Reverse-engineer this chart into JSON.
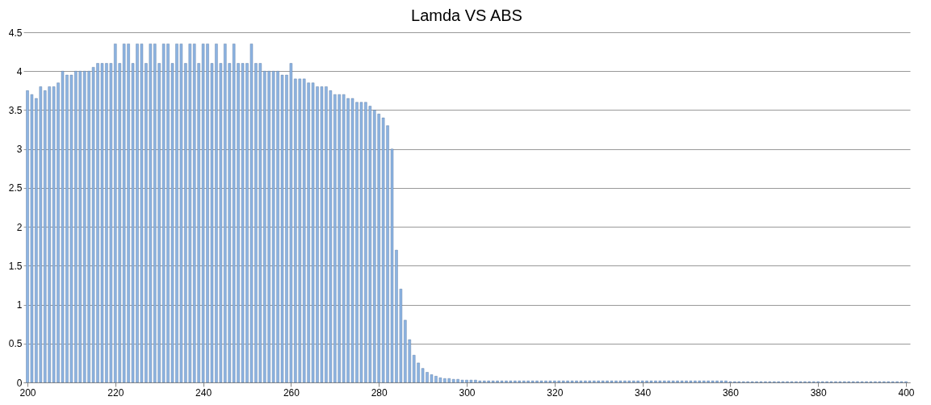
{
  "chart_data": {
    "type": "bar",
    "title": "Lamda VS ABS",
    "x": [
      200,
      201,
      202,
      203,
      204,
      205,
      206,
      207,
      208,
      209,
      210,
      211,
      212,
      213,
      214,
      215,
      216,
      217,
      218,
      219,
      220,
      221,
      222,
      223,
      224,
      225,
      226,
      227,
      228,
      229,
      230,
      231,
      232,
      233,
      234,
      235,
      236,
      237,
      238,
      239,
      240,
      241,
      242,
      243,
      244,
      245,
      246,
      247,
      248,
      249,
      250,
      251,
      252,
      253,
      254,
      255,
      256,
      257,
      258,
      259,
      260,
      261,
      262,
      263,
      264,
      265,
      266,
      267,
      268,
      269,
      270,
      271,
      272,
      273,
      274,
      275,
      276,
      277,
      278,
      279,
      280,
      281,
      282,
      283,
      284,
      285,
      286,
      287,
      288,
      289,
      290,
      291,
      292,
      293,
      294,
      295,
      296,
      297,
      298,
      299,
      300,
      301,
      302,
      303,
      304,
      305,
      306,
      307,
      308,
      309,
      310,
      311,
      312,
      313,
      314,
      315,
      316,
      317,
      318,
      319,
      320,
      321,
      322,
      323,
      324,
      325,
      326,
      327,
      328,
      329,
      330,
      331,
      332,
      333,
      334,
      335,
      336,
      337,
      338,
      339,
      340,
      341,
      342,
      343,
      344,
      345,
      346,
      347,
      348,
      349,
      350,
      351,
      352,
      353,
      354,
      355,
      356,
      357,
      358,
      359,
      360,
      361,
      362,
      363,
      364,
      365,
      366,
      367,
      368,
      369,
      370,
      371,
      372,
      373,
      374,
      375,
      376,
      377,
      378,
      379,
      380,
      381,
      382,
      383,
      384,
      385,
      386,
      387,
      388,
      389,
      390,
      391,
      392,
      393,
      394,
      395,
      396,
      397,
      398,
      399,
      400
    ],
    "values": [
      3.75,
      3.7,
      3.65,
      3.8,
      3.75,
      3.8,
      3.8,
      3.85,
      4.0,
      3.95,
      3.95,
      4.0,
      4.0,
      4.0,
      4.0,
      4.05,
      4.1,
      4.1,
      4.1,
      4.1,
      4.35,
      4.1,
      4.35,
      4.35,
      4.1,
      4.35,
      4.35,
      4.1,
      4.35,
      4.35,
      4.1,
      4.35,
      4.35,
      4.1,
      4.35,
      4.35,
      4.1,
      4.35,
      4.35,
      4.1,
      4.35,
      4.35,
      4.1,
      4.35,
      4.1,
      4.35,
      4.1,
      4.35,
      4.1,
      4.1,
      4.1,
      4.35,
      4.1,
      4.1,
      4.0,
      4.0,
      4.0,
      4.0,
      3.95,
      3.95,
      4.1,
      3.9,
      3.9,
      3.9,
      3.85,
      3.85,
      3.8,
      3.8,
      3.8,
      3.75,
      3.7,
      3.7,
      3.7,
      3.65,
      3.65,
      3.6,
      3.6,
      3.6,
      3.55,
      3.5,
      3.45,
      3.4,
      3.3,
      3.0,
      1.7,
      1.2,
      0.8,
      0.55,
      0.35,
      0.25,
      0.18,
      0.13,
      0.1,
      0.08,
      0.06,
      0.05,
      0.05,
      0.04,
      0.04,
      0.03,
      0.03,
      0.03,
      0.03,
      0.02,
      0.02,
      0.02,
      0.02,
      0.02,
      0.02,
      0.02,
      0.02,
      0.02,
      0.02,
      0.02,
      0.02,
      0.02,
      0.02,
      0.02,
      0.02,
      0.02,
      0.02,
      0.02,
      0.02,
      0.02,
      0.02,
      0.02,
      0.02,
      0.02,
      0.02,
      0.02,
      0.02,
      0.02,
      0.02,
      0.02,
      0.02,
      0.02,
      0.02,
      0.02,
      0.02,
      0.02,
      0.02,
      0.02,
      0.02,
      0.02,
      0.02,
      0.02,
      0.02,
      0.02,
      0.02,
      0.02,
      0.02,
      0.02,
      0.02,
      0.02,
      0.02,
      0.02,
      0.02,
      0.02,
      0.02,
      0.02,
      0.01,
      0.01,
      0.01,
      0.01,
      0.01,
      0.01,
      0.01,
      0.01,
      0.01,
      0.01,
      0.01,
      0.01,
      0.01,
      0.01,
      0.01,
      0.01,
      0.01,
      0.01,
      0.01,
      0.01,
      0.01,
      0.01,
      0.01,
      0.01,
      0.01,
      0.01,
      0.01,
      0.01,
      0.01,
      0.01,
      0.01,
      0.01,
      0.01,
      0.01,
      0.01,
      0.01,
      0.01,
      0.01,
      0.01,
      0.01,
      0.01
    ],
    "color": "#8db4e2",
    "xlim": [
      200,
      400
    ],
    "xticks": [
      200,
      220,
      240,
      260,
      280,
      300,
      320,
      340,
      360,
      380,
      400
    ],
    "ylim": [
      0,
      4.5
    ],
    "yticks": [
      0,
      0.5,
      1,
      1.5,
      2,
      2.5,
      3,
      3.5,
      4,
      4.5
    ],
    "grid": "y"
  }
}
